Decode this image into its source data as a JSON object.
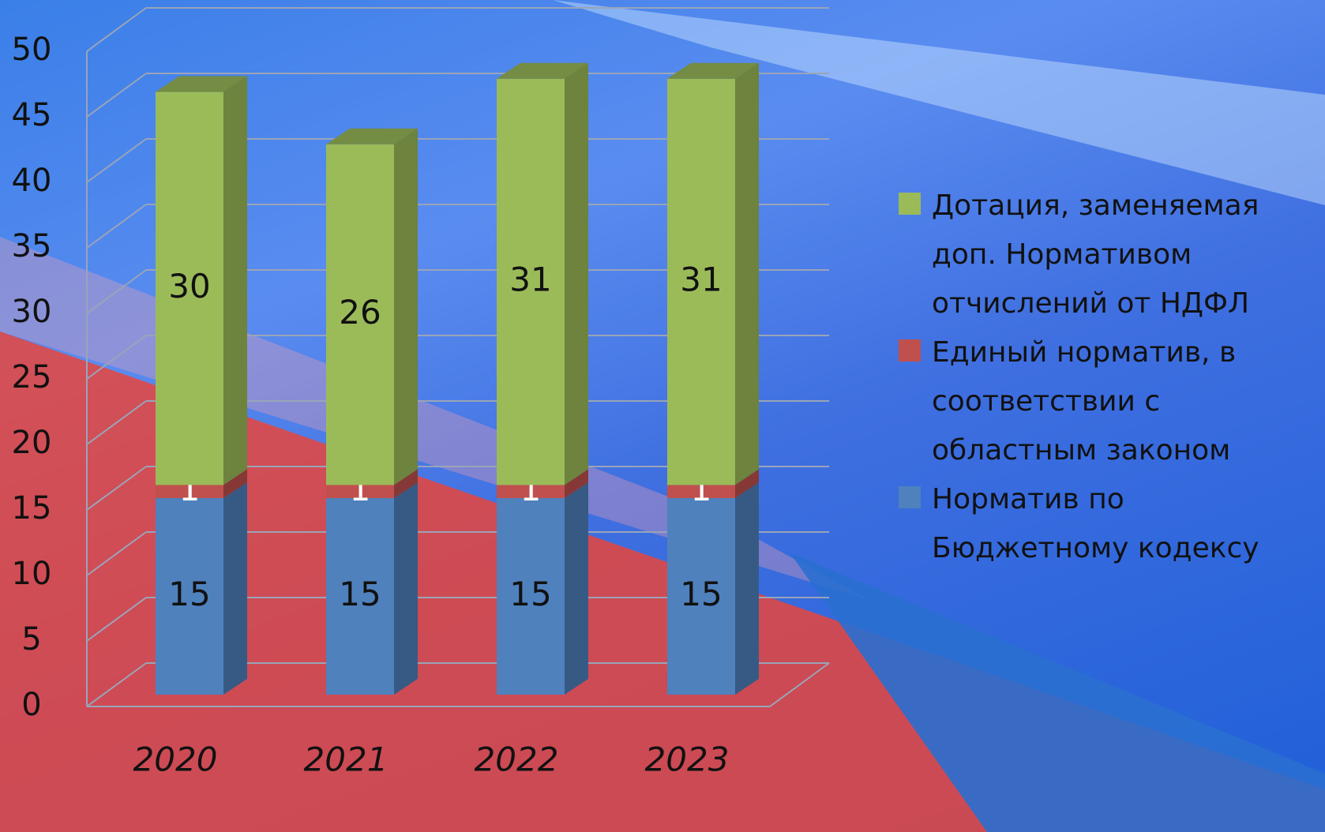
{
  "chart_data": {
    "type": "bar3d_stacked",
    "categories": [
      "2020",
      "2021",
      "2022",
      "2023"
    ],
    "series": [
      {
        "name": "Норматив по Бюджетному кодексу",
        "color": "#4f81bd",
        "values": [
          15,
          15,
          15,
          15
        ]
      },
      {
        "name": "Единый норматив, в соответствии с областным законом",
        "color": "#c0504d",
        "values": [
          1,
          1,
          1,
          1
        ]
      },
      {
        "name": "Дотация, заменяемая доп. Нормативом отчислений от НДФЛ",
        "color": "#9bbb59",
        "values": [
          30,
          26,
          31,
          31
        ]
      }
    ],
    "ylim": [
      0,
      50
    ],
    "yticks": [
      0,
      5,
      10,
      15,
      20,
      25,
      30,
      35,
      40,
      45,
      50
    ],
    "grid": true,
    "legend": "right"
  }
}
